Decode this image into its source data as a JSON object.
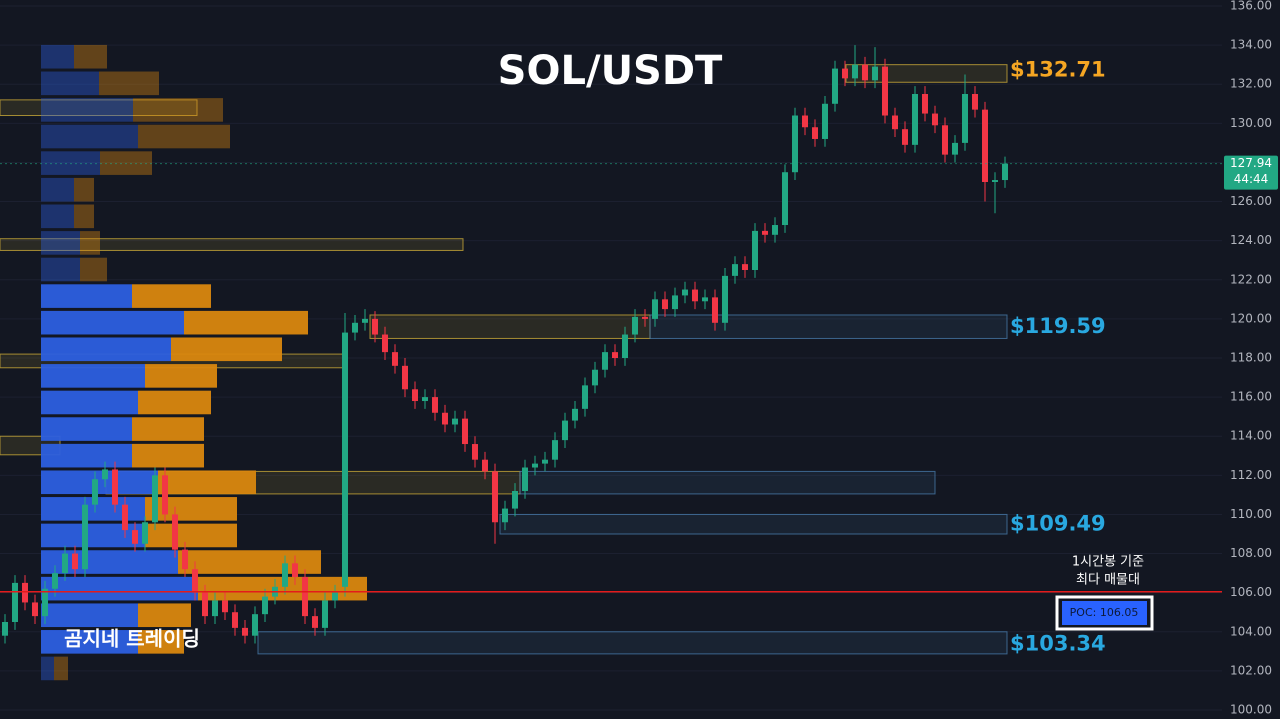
{
  "chart_data": {
    "type": "candlestick",
    "title": "SOL/USDT",
    "watermark": "곰지네 트레이딩",
    "ylim": [
      100,
      136
    ],
    "yticks": [
      {
        "value": 100,
        "label": "100.00"
      },
      {
        "value": 102,
        "label": "102.00"
      },
      {
        "value": 104,
        "label": "104.00"
      },
      {
        "value": 106,
        "label": "106.00"
      },
      {
        "value": 108,
        "label": "108.00"
      },
      {
        "value": 110,
        "label": "110.00"
      },
      {
        "value": 112,
        "label": "112.00"
      },
      {
        "value": 114,
        "label": "114.00"
      },
      {
        "value": 116,
        "label": "116.00"
      },
      {
        "value": 118,
        "label": "118.00"
      },
      {
        "value": 120,
        "label": "120.00"
      },
      {
        "value": 122,
        "label": "122.00"
      },
      {
        "value": 124,
        "label": "124.00"
      },
      {
        "value": 126,
        "label": "126.00"
      },
      {
        "value": 128,
        "label": "128.00"
      },
      {
        "value": 130,
        "label": "130.00"
      },
      {
        "value": 132,
        "label": "132.00"
      },
      {
        "value": 134,
        "label": "134.00"
      },
      {
        "value": 136,
        "label": "136.00"
      }
    ],
    "grid": true,
    "up_color": "#22a884",
    "down_color": "#f23645",
    "candles": {
      "open": [
        103.8,
        104.5,
        106.5,
        105.5,
        104.8,
        106.2,
        107.0,
        108.0,
        107.2,
        110.5,
        111.8,
        112.3,
        110.5,
        109.2,
        108.5,
        109.6,
        112.0,
        110.0,
        108.2,
        107.2,
        106.0,
        104.8,
        105.6,
        105.0,
        104.2,
        103.8,
        104.9,
        105.8,
        106.3,
        107.5,
        106.8,
        104.8,
        104.2,
        105.6,
        106.3,
        119.3,
        119.8,
        120.0,
        119.2,
        118.3,
        117.6,
        116.4,
        115.8,
        116.0,
        115.2,
        114.6,
        114.9,
        113.6,
        112.8,
        112.2,
        109.6,
        110.3,
        111.2,
        112.4,
        112.6,
        112.8,
        113.8,
        114.8,
        115.4,
        116.6,
        117.4,
        118.3,
        118.0,
        119.2,
        120.1,
        120.0,
        121.0,
        120.5,
        121.2,
        121.5,
        120.9,
        121.1,
        119.8,
        122.2,
        122.8,
        122.5,
        124.5,
        124.3,
        124.8,
        127.5,
        130.4,
        129.8,
        129.2,
        131.0,
        132.8,
        132.3,
        133.0,
        132.2,
        132.9,
        130.4,
        129.7,
        128.9,
        131.5,
        130.5,
        129.9,
        128.4,
        129.0,
        131.5,
        130.7,
        127.0,
        127.1
      ],
      "high": [
        104.9,
        106.9,
        106.9,
        105.9,
        106.6,
        107.4,
        108.4,
        108.4,
        110.9,
        112.2,
        112.7,
        112.7,
        110.9,
        109.6,
        109.9,
        112.4,
        112.4,
        110.4,
        108.6,
        107.6,
        106.4,
        106.0,
        106.0,
        105.4,
        104.6,
        105.3,
        106.2,
        106.7,
        107.9,
        107.9,
        107.2,
        105.2,
        106.0,
        106.4,
        120.3,
        120.2,
        120.5,
        120.4,
        119.6,
        118.7,
        118.0,
        116.8,
        116.4,
        116.4,
        115.6,
        115.3,
        115.3,
        114.0,
        113.2,
        112.6,
        110.7,
        111.6,
        112.8,
        113.0,
        113.2,
        114.2,
        115.2,
        115.8,
        117.0,
        117.8,
        118.7,
        118.7,
        119.6,
        120.5,
        120.5,
        121.4,
        121.4,
        121.6,
        121.9,
        121.9,
        121.5,
        121.5,
        122.6,
        123.2,
        123.2,
        124.9,
        124.9,
        125.2,
        127.9,
        130.8,
        130.8,
        130.2,
        131.4,
        133.2,
        133.2,
        134.0,
        133.4,
        133.9,
        133.3,
        130.8,
        130.1,
        131.9,
        131.9,
        130.9,
        130.3,
        129.4,
        132.5,
        131.9,
        131.1,
        127.5,
        128.3
      ],
      "low": [
        103.4,
        104.1,
        105.1,
        104.4,
        104.4,
        105.8,
        106.6,
        106.8,
        106.8,
        110.1,
        111.4,
        110.1,
        108.8,
        108.1,
        108.1,
        109.2,
        109.6,
        107.8,
        106.8,
        105.6,
        104.4,
        104.4,
        104.6,
        103.8,
        103.4,
        103.4,
        104.5,
        105.4,
        105.9,
        106.4,
        104.4,
        103.8,
        103.8,
        105.2,
        105.8,
        118.9,
        119.4,
        118.8,
        117.9,
        117.2,
        116.0,
        115.4,
        115.4,
        114.8,
        114.2,
        114.2,
        113.2,
        112.4,
        111.8,
        108.5,
        109.2,
        109.9,
        110.8,
        112.0,
        112.2,
        112.4,
        113.4,
        114.4,
        115.0,
        116.2,
        117.0,
        117.6,
        117.6,
        118.8,
        119.6,
        119.6,
        120.1,
        120.1,
        120.8,
        120.5,
        120.5,
        119.4,
        119.4,
        121.8,
        122.1,
        122.1,
        123.9,
        123.9,
        124.4,
        127.1,
        129.4,
        128.8,
        128.8,
        130.6,
        131.9,
        131.9,
        131.8,
        131.8,
        130.0,
        129.3,
        128.5,
        128.5,
        130.1,
        129.5,
        128.0,
        128.0,
        128.6,
        130.3,
        126.0,
        125.4,
        126.7
      ],
      "close": [
        104.5,
        106.5,
        105.5,
        104.8,
        106.2,
        107.0,
        108.0,
        107.2,
        110.5,
        111.8,
        112.3,
        110.5,
        109.2,
        108.5,
        109.6,
        112.0,
        110.0,
        108.2,
        107.2,
        106.0,
        104.8,
        105.6,
        105.0,
        104.2,
        103.8,
        104.9,
        105.8,
        106.3,
        107.5,
        106.8,
        104.8,
        104.2,
        105.6,
        106.0,
        119.3,
        119.8,
        120.0,
        119.2,
        118.3,
        117.6,
        116.4,
        115.8,
        116.0,
        115.2,
        114.6,
        114.9,
        113.6,
        112.8,
        112.2,
        109.6,
        110.3,
        111.2,
        112.4,
        112.6,
        112.8,
        113.8,
        114.8,
        115.4,
        116.6,
        117.4,
        118.3,
        118.0,
        119.2,
        120.1,
        120.0,
        121.0,
        120.5,
        121.2,
        121.5,
        120.9,
        121.1,
        119.8,
        122.2,
        122.8,
        122.5,
        124.5,
        124.3,
        124.8,
        127.5,
        130.4,
        129.8,
        129.2,
        131.0,
        132.8,
        132.3,
        133.0,
        132.2,
        132.9,
        130.4,
        129.7,
        128.9,
        131.5,
        130.5,
        129.9,
        128.4,
        129.0,
        131.5,
        130.7,
        127.0,
        127.1,
        127.94
      ]
    },
    "profile": {
      "top": 134.06,
      "step": 1.36,
      "value_area": [
        102.78,
        121.82
      ],
      "buy_color": "#2c5fe0",
      "sell_color": "#d9870f",
      "buy": [
        33,
        58,
        92,
        97,
        59,
        33,
        33,
        39,
        39,
        91,
        143,
        130,
        104,
        97,
        91,
        91,
        117,
        104,
        104,
        137,
        157,
        97,
        97,
        13
      ],
      "sell": [
        33,
        60,
        90,
        92,
        52,
        20,
        20,
        20,
        27,
        79,
        124,
        111,
        72,
        73,
        72,
        72,
        98,
        92,
        92,
        143,
        169,
        53,
        46,
        14
      ]
    },
    "zones": [
      {
        "top": 133.0,
        "bottom": 132.1,
        "color": "#d4b23a"
      },
      {
        "top": 120.2,
        "bottom": 119.0,
        "color": "#d4b23a"
      },
      {
        "top": 120.2,
        "bottom": 119.0,
        "color": "#4a7fb0"
      },
      {
        "top": 112.2,
        "bottom": 111.05,
        "color": "#d4b23a"
      },
      {
        "top": 112.2,
        "bottom": 111.05,
        "color": "#4a7fb0"
      },
      {
        "top": 110.0,
        "bottom": 109.0,
        "color": "#4a7fb0"
      },
      {
        "top": 104.0,
        "bottom": 102.87,
        "color": "#4a7fb0"
      },
      {
        "top": 131.2,
        "bottom": 130.4,
        "color": "#d4b23a"
      },
      {
        "top": 124.1,
        "bottom": 123.5,
        "color": "#d4b23a"
      },
      {
        "top": 118.2,
        "bottom": 117.5,
        "color": "#d4b23a"
      },
      {
        "top": 114.0,
        "bottom": 113.05,
        "color": "#d4b23a"
      }
    ],
    "levels": [
      {
        "value": 132.71,
        "label": "$132.71",
        "color": "#f5a623"
      },
      {
        "value": 119.59,
        "label": "$119.59",
        "color": "#29a8e0"
      },
      {
        "value": 109.49,
        "label": "$109.49",
        "color": "#29a8e0"
      },
      {
        "value": 103.34,
        "label": "$103.34",
        "color": "#29a8e0"
      }
    ],
    "poc": {
      "value": 106.05,
      "label": "POC: 106.05",
      "color": "#e31b1b",
      "note": [
        "1시간봉 기준",
        "최다 매물대"
      ]
    },
    "last_price": 127.94,
    "countdown": "44:44"
  }
}
